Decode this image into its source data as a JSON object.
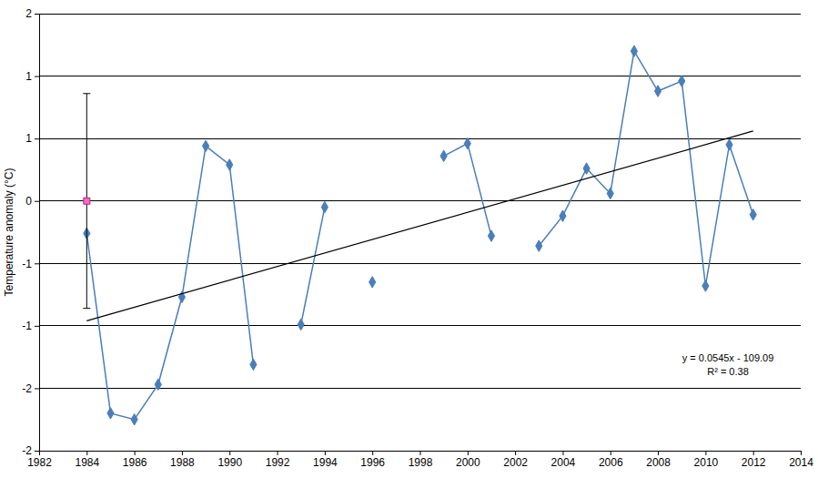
{
  "chart_data": {
    "type": "line",
    "y_label": "Temperature anomaly (°C)",
    "x": [
      1984,
      1985,
      1986,
      1987,
      1988,
      1989,
      1990,
      1991,
      1992,
      1993,
      1994,
      1995,
      1996,
      1997,
      1998,
      1999,
      2000,
      2001,
      2002,
      2003,
      2004,
      2005,
      2006,
      2007,
      2008,
      2009,
      2010,
      2011,
      2012
    ],
    "series": [
      {
        "type": "line",
        "color": "#4a7ebb",
        "marker": "diamond",
        "values": [
          -0.26,
          -1.7,
          -1.75,
          -1.47,
          -0.77,
          0.44,
          0.29,
          -1.31,
          null,
          -0.99,
          -0.05,
          null,
          -0.65,
          null,
          null,
          0.36,
          0.46,
          -0.28,
          null,
          -0.36,
          -0.12,
          0.26,
          0.06,
          1.2,
          0.88,
          0.96,
          -0.68,
          0.45,
          -0.11
        ]
      },
      {
        "type": "scatter",
        "color": "#ff66cc",
        "marker": "square",
        "x": [
          1984
        ],
        "values": [
          0
        ],
        "errors": [
          0.86
        ]
      },
      {
        "type": "line",
        "color": "#000000",
        "marker": "none",
        "x": [
          1984,
          2012
        ],
        "values": [
          -0.96,
          0.56
        ]
      }
    ],
    "annotations": [
      "y = 0.0545x - 109.09",
      "R² = 0.38"
    ],
    "xlim": [
      1982,
      2014
    ],
    "xticks": [
      1982,
      1984,
      1986,
      1988,
      1990,
      1992,
      1994,
      1996,
      1998,
      2000,
      2002,
      2004,
      2006,
      2008,
      2010,
      2012,
      2014
    ],
    "ylim": [
      -2,
      1.5
    ],
    "yticks": [
      {
        "value": -2,
        "label": "-2"
      },
      {
        "value": -1.5,
        "label": "-2"
      },
      {
        "value": -1,
        "label": "-1"
      },
      {
        "value": -0.5,
        "label": "-1"
      },
      {
        "value": 0,
        "label": "0"
      },
      {
        "value": 0.5,
        "label": "1"
      },
      {
        "value": 1,
        "label": "1"
      },
      {
        "value": 1.5,
        "label": "2"
      }
    ],
    "grid": true
  }
}
